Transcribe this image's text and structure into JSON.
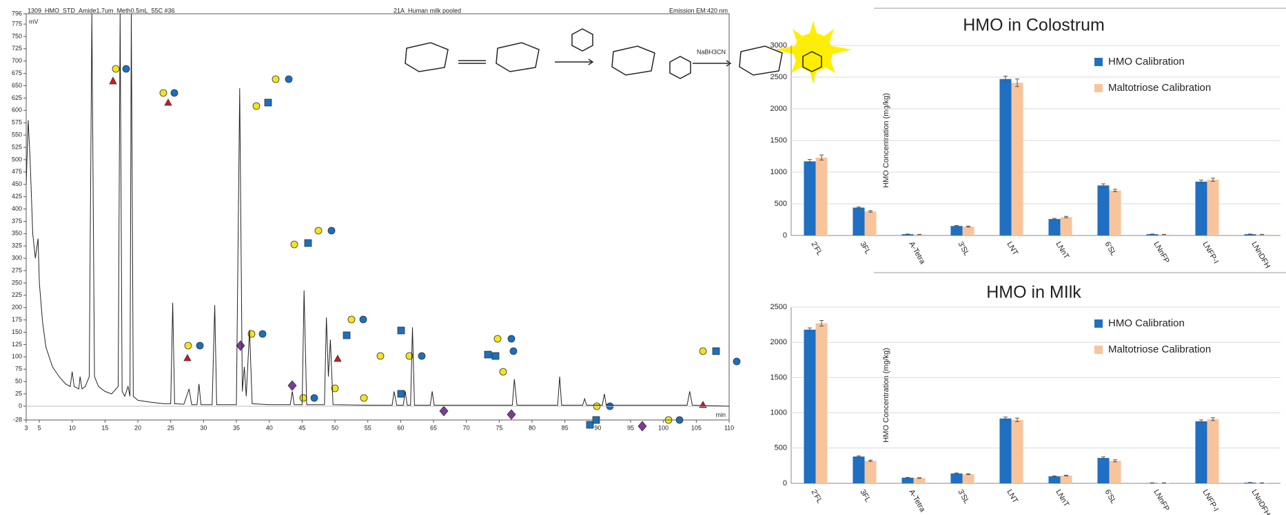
{
  "chart_data": [
    {
      "type": "line",
      "header_left": "1309_HMO_STD_Amide1.7um_Meth0.5mL_55C #36",
      "title": "21A_Human milk pooled",
      "header_right": "Emission EM:420 nm",
      "ylabel": "mV",
      "xlabel": "min",
      "color": "#222222",
      "annotation": "NaBH3CN",
      "x": [
        3,
        3.3,
        3.6,
        4,
        4.4,
        4.8,
        5,
        5.5,
        6,
        7,
        8,
        9,
        9.7,
        10,
        10.3,
        11,
        11.2,
        11.5,
        12,
        12.6,
        13,
        13.4,
        14,
        15,
        16,
        17,
        17.3,
        17.6,
        18,
        18.5,
        18.8,
        19,
        19.3,
        20,
        22,
        24,
        25,
        25.3,
        25.6,
        27,
        27.8,
        28.2,
        29,
        29.3,
        29.6,
        31.3,
        31.7,
        32,
        35,
        35.5,
        35.9,
        36.2,
        36.5,
        37,
        37.4,
        40,
        43.2,
        43.5,
        43.8,
        45,
        45.3,
        45.7,
        48.4,
        48.7,
        49,
        49.3,
        49.7,
        55,
        58.7,
        59,
        59.4,
        60.4,
        60.7,
        61,
        61.5,
        61.8,
        62.1,
        64.5,
        64.8,
        65.1,
        70,
        77,
        77.3,
        77.7,
        83.9,
        84.2,
        84.5,
        87.7,
        88,
        88.3,
        90.7,
        91,
        91.3,
        95,
        103.6,
        104,
        104.4,
        110
      ],
      "values": [
        450,
        580,
        500,
        350,
        300,
        340,
        250,
        170,
        120,
        80,
        60,
        45,
        40,
        70,
        40,
        35,
        60,
        35,
        40,
        60,
        796,
        60,
        40,
        30,
        25,
        40,
        796,
        30,
        20,
        40,
        20,
        796,
        20,
        12,
        8,
        5,
        5,
        210,
        5,
        4,
        35,
        3,
        3,
        45,
        3,
        3,
        205,
        3,
        3,
        645,
        30,
        80,
        20,
        155,
        5,
        3,
        3,
        30,
        3,
        3,
        235,
        3,
        3,
        180,
        60,
        135,
        3,
        2,
        2,
        30,
        2,
        2,
        30,
        2,
        2,
        160,
        2,
        2,
        30,
        2,
        2,
        2,
        55,
        2,
        2,
        60,
        2,
        2,
        15,
        2,
        2,
        25,
        2,
        2,
        2,
        30,
        2,
        0
      ],
      "xlim": [
        3,
        110
      ],
      "ylim": [
        -28,
        796
      ],
      "xticks": [
        3,
        5,
        10,
        15,
        20,
        25,
        30,
        35,
        40,
        45,
        50,
        55,
        60,
        65,
        70,
        75,
        80,
        85,
        90,
        95,
        100,
        105,
        110
      ],
      "yticks": [
        -28,
        0,
        25,
        50,
        75,
        100,
        125,
        150,
        175,
        200,
        225,
        250,
        275,
        300,
        325,
        350,
        375,
        400,
        425,
        450,
        475,
        500,
        525,
        550,
        575,
        600,
        625,
        650,
        675,
        700,
        725,
        750,
        775,
        796
      ]
    },
    {
      "type": "bar",
      "title": "HMO in Colostrum",
      "ylabel": "HMO Concentration (mg/kg)",
      "legend": "upper right",
      "categories": [
        "2'FL",
        "3FL",
        "A-Tetra",
        "3'SL",
        "LNT",
        "LNnT",
        "6'SL",
        "LNnFP",
        "LNFP-I",
        "LNnDFH"
      ],
      "series": [
        {
          "name": "HMO Calibration",
          "color": "#1f6fc2",
          "values": [
            1170,
            440,
            20,
            150,
            2470,
            260,
            790,
            20,
            850,
            20
          ],
          "errors": [
            30,
            10,
            3,
            8,
            45,
            10,
            25,
            3,
            25,
            3
          ]
        },
        {
          "name": "Maltotriose Calibration",
          "color": "#f8c49b",
          "values": [
            1230,
            380,
            15,
            140,
            2410,
            290,
            710,
            15,
            880,
            15
          ],
          "errors": [
            40,
            12,
            3,
            8,
            60,
            12,
            20,
            3,
            25,
            3
          ]
        }
      ],
      "ylim": [
        0,
        3000
      ],
      "yticks": [
        0,
        500,
        1000,
        1500,
        2000,
        2500,
        3000
      ]
    },
    {
      "type": "bar",
      "title": "HMO in MIlk",
      "ylabel": "HMO Concentration (mg/kg)",
      "legend": "upper right",
      "categories": [
        "2'FL",
        "3FL",
        "A-Tetra",
        "3'SL",
        "LNT",
        "LNnT",
        "6'SL",
        "LNnFP",
        "LNFP-I",
        "LNnDFH"
      ],
      "series": [
        {
          "name": "HMO Calibration",
          "color": "#1f6fc2",
          "values": [
            2180,
            380,
            80,
            140,
            920,
            100,
            360,
            5,
            880,
            10
          ],
          "errors": [
            25,
            10,
            4,
            6,
            20,
            5,
            15,
            2,
            20,
            2
          ]
        },
        {
          "name": "Maltotriose Calibration",
          "color": "#f8c49b",
          "values": [
            2270,
            320,
            75,
            130,
            900,
            110,
            320,
            5,
            910,
            5
          ],
          "errors": [
            40,
            10,
            4,
            6,
            25,
            5,
            15,
            2,
            20,
            2
          ]
        }
      ],
      "ylim": [
        0,
        2500
      ],
      "yticks": [
        0,
        500,
        1000,
        1500,
        2000,
        2500
      ]
    }
  ]
}
